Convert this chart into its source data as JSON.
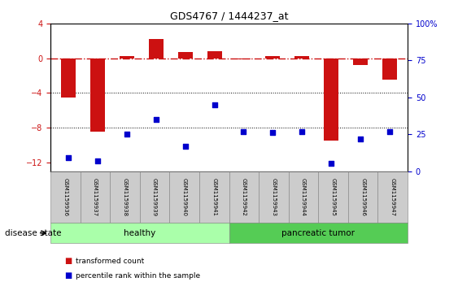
{
  "title": "GDS4767 / 1444237_at",
  "samples": [
    "GSM1159936",
    "GSM1159937",
    "GSM1159938",
    "GSM1159939",
    "GSM1159940",
    "GSM1159941",
    "GSM1159942",
    "GSM1159943",
    "GSM1159944",
    "GSM1159945",
    "GSM1159946",
    "GSM1159947"
  ],
  "transformed_count": [
    -4.5,
    -8.5,
    0.3,
    2.2,
    0.7,
    0.8,
    -0.1,
    0.3,
    0.3,
    -9.5,
    -0.8,
    -2.5
  ],
  "percentile_rank": [
    9,
    7,
    25,
    35,
    17,
    45,
    27,
    26,
    27,
    5,
    22,
    27
  ],
  "groups": [
    "healthy",
    "healthy",
    "healthy",
    "healthy",
    "healthy",
    "healthy",
    "pancreatic tumor",
    "pancreatic tumor",
    "pancreatic tumor",
    "pancreatic tumor",
    "pancreatic tumor",
    "pancreatic tumor"
  ],
  "healthy_color": "#aaffaa",
  "tumor_color": "#55cc55",
  "bar_color": "#cc1111",
  "dot_color": "#0000cc",
  "ylim_left": [
    -13,
    4
  ],
  "ylim_right": [
    0,
    100
  ],
  "yticks_left": [
    4,
    0,
    -4,
    -8,
    -12
  ],
  "yticks_right": [
    100,
    75,
    50,
    25,
    0
  ],
  "hline_y": 0,
  "dotted_lines": [
    -4,
    -8
  ],
  "bg_color": "#ffffff",
  "plot_bg": "#ffffff",
  "label_transformed": "transformed count",
  "label_percentile": "percentile rank within the sample",
  "disease_state_label": "disease state"
}
